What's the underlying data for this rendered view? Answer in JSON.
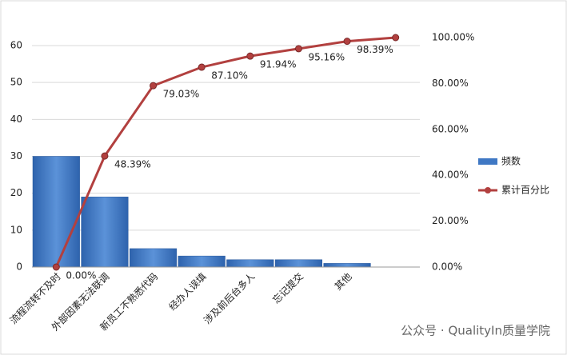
{
  "chart_data": {
    "type": "pareto",
    "categories": [
      "流程流转不及时",
      "外部因素无法联调",
      "新员工不熟悉代码",
      "经办人误填",
      "涉及前后台多人",
      "忘记提交",
      "其他",
      null
    ],
    "series": [
      {
        "name": "频数",
        "color": "#3f78c4",
        "values": [
          30,
          19,
          5,
          3,
          2,
          2,
          1,
          null
        ]
      },
      {
        "name": "累计百分比",
        "color": "#b2403f",
        "axis": "y2",
        "values": [
          0,
          48.39,
          79.03,
          87.1,
          91.94,
          95.16,
          98.39,
          100
        ],
        "value_labels": [
          "0.00%",
          "48.39%",
          "79.03%",
          "87.10%",
          "91.94%",
          "95.16%",
          "98.39%",
          null
        ]
      }
    ],
    "ylim": [
      0,
      60
    ],
    "yticks": [
      0,
      10,
      20,
      30,
      40,
      50,
      60
    ],
    "y2lim": [
      0,
      100
    ],
    "y2ticks": [
      {
        "value": 0,
        "label": "0.00%"
      },
      {
        "value": 20,
        "label": "20.00%"
      },
      {
        "value": 40,
        "label": "40.00%"
      },
      {
        "value": 60,
        "label": "60.00%"
      },
      {
        "value": 80,
        "label": "80.00%"
      },
      {
        "value": 100,
        "label": "100.00%"
      }
    ],
    "grid": true,
    "legend": "right",
    "watermark": "公众号 · QualityIn质量学院"
  }
}
